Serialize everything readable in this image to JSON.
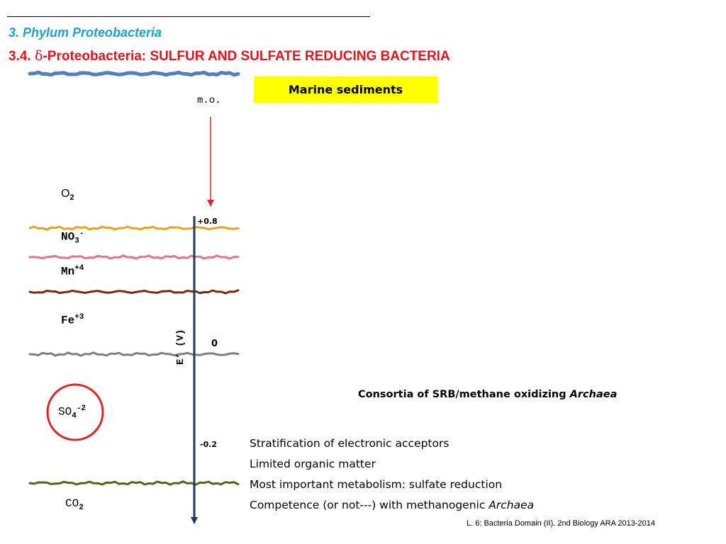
{
  "header": {
    "phylum": "3. Phylum Proteobacteria",
    "section_number": "3.4. ",
    "delta_symbol": "δ",
    "section_title": "-Proteobacteria: SULFUR AND SULFATE REDUCING BACTERIA"
  },
  "badge": {
    "label": "Marine sediments",
    "color": "#ffff00"
  },
  "diagram": {
    "input_label": "m.o.",
    "axis_label": "E’ (V)",
    "potential_top": "+0.8",
    "potential_zero": "0",
    "potential_bottom": "-0.2",
    "acceptors": {
      "o2": {
        "base": "O",
        "sub": "2"
      },
      "no3": {
        "base": "NO",
        "sub": "3",
        "sup": "-"
      },
      "mn": {
        "base": "Mn",
        "sup": "+4"
      },
      "fe": {
        "base": "Fe",
        "sup": "+3"
      },
      "so4": {
        "base": "SO",
        "sub": "4",
        "sup": "-2"
      },
      "co2": {
        "base": "CO",
        "sub": "2"
      }
    },
    "layer_colors": {
      "surface": "#4f81bd",
      "nitrate": "#e8a317",
      "manganese": "#e8728a",
      "iron": "#7a2a0a",
      "zero": "#7f7f7f",
      "methanogenic": "#5a6314"
    },
    "highlight_color": "#e32322",
    "arrow_color": "#e32322",
    "axis_color": "#1f3864"
  },
  "consortia": {
    "text": "Consortia of SRB/methane oxidizing ",
    "italic": "Archaea"
  },
  "notes": [
    {
      "text": "Stratification of electronic acceptors"
    },
    {
      "text": "Limited organic matter"
    },
    {
      "text": "Most important metabolism: sulfate reduction"
    },
    {
      "text": "Competence (or not---) with methanogenic ",
      "italic": "Archaea"
    }
  ],
  "footer": "L. 6: Bacteria Domain (II). 2nd Biology ARA 2013-2014"
}
